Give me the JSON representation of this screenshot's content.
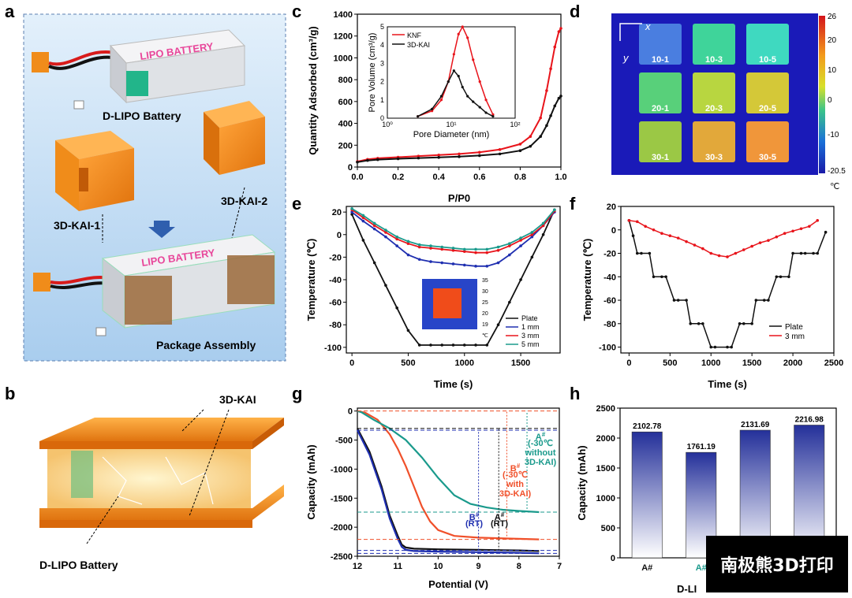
{
  "panels": {
    "a": {
      "letter": "a",
      "label_battery": "D-LIPO Battery",
      "label_k1": "3D-KAI-1",
      "label_k2": "3D-KAI-2",
      "label_pkg": "Package Assembly",
      "battery_print": "LIPO BATTERY",
      "battery_print2": "LIPO BATTERY"
    },
    "b": {
      "letter": "b",
      "label_kai": "3D-KAI",
      "label_battery": "D-LIPO Battery"
    },
    "c": {
      "letter": "c"
    },
    "d": {
      "letter": "d",
      "x_axis": "x",
      "y_axis": "y",
      "samples": [
        "10-1",
        "10-3",
        "10-5",
        "20-1",
        "20-3",
        "20-5",
        "30-1",
        "30-3",
        "30-5"
      ],
      "colorbar_ticks": [
        "26",
        "20",
        "10",
        "0",
        "-10",
        "-20.5"
      ],
      "unit": "℃"
    },
    "e": {
      "letter": "e",
      "inset_ticks": [
        "35",
        "30",
        "25",
        "20",
        "19"
      ],
      "inset_unit": "℃"
    },
    "f": {
      "letter": "f"
    },
    "g": {
      "letter": "g",
      "annotations": {
        "a_cold": [
          "A",
          "(-30℃",
          "without",
          "3D-KAI)"
        ],
        "b_cold": [
          "B",
          "(-30℃",
          "with",
          "3D-KAI)"
        ],
        "b_rt": [
          "B",
          "(RT)"
        ],
        "a_rt": [
          "A",
          "(RT)"
        ]
      },
      "sup": "#"
    },
    "h": {
      "letter": "h",
      "xlabel": "D-LI"
    }
  },
  "chart_data": [
    {
      "id": "c",
      "type": "line",
      "xlabel": "P/P0",
      "ylabel": "Quantity Adsorbed (cm³/g)",
      "xlim": [
        0,
        1.0
      ],
      "ylim": [
        0,
        1400
      ],
      "xticks": [
        "0.0",
        "0.2",
        "0.4",
        "0.6",
        "0.8",
        "1.0"
      ],
      "yticks": [
        "0",
        "200",
        "400",
        "600",
        "800",
        "1000",
        "1200",
        "1400"
      ],
      "series": [
        {
          "name": "KNF",
          "color": "#e8141b",
          "x": [
            0,
            0.05,
            0.1,
            0.2,
            0.3,
            0.4,
            0.5,
            0.6,
            0.7,
            0.8,
            0.85,
            0.9,
            0.93,
            0.95,
            0.97,
            0.99,
            1.0
          ],
          "y": [
            50,
            70,
            80,
            90,
            100,
            110,
            120,
            135,
            160,
            210,
            280,
            450,
            700,
            900,
            1100,
            1240,
            1270
          ]
        },
        {
          "name": "3D-KAI",
          "color": "#111111",
          "x": [
            0,
            0.05,
            0.1,
            0.2,
            0.3,
            0.4,
            0.5,
            0.6,
            0.7,
            0.8,
            0.85,
            0.9,
            0.93,
            0.95,
            0.97,
            0.99,
            1.0
          ],
          "y": [
            45,
            60,
            68,
            76,
            82,
            88,
            95,
            105,
            120,
            150,
            190,
            280,
            380,
            470,
            560,
            630,
            650
          ]
        }
      ],
      "inset": {
        "xlabel": "Pore Diameter (nm)",
        "ylabel": "Pore Volume (cm³/g)",
        "xticks": [
          "10⁰",
          "10¹",
          "10²"
        ],
        "yticks": [
          "0",
          "1",
          "2",
          "3",
          "4",
          "5"
        ],
        "series": [
          {
            "name": "KNF",
            "color": "#e8141b",
            "x": [
              3,
              5,
              7,
              9,
              11,
              13,
              15,
              18,
              22,
              28,
              35,
              45
            ],
            "y": [
              0.1,
              0.4,
              1.0,
              2.0,
              3.5,
              4.6,
              5.0,
              4.4,
              3.2,
              2.0,
              1.0,
              0.2
            ]
          },
          {
            "name": "3D-KAI",
            "color": "#111111",
            "x": [
              3,
              5,
              7,
              9,
              11,
              13,
              15,
              18,
              22,
              28,
              35,
              45
            ],
            "y": [
              0.1,
              0.5,
              1.2,
              2.0,
              2.6,
              2.3,
              1.7,
              1.2,
              0.9,
              0.6,
              0.3,
              0.1
            ]
          }
        ]
      }
    },
    {
      "id": "e",
      "type": "line",
      "xlabel": "Time (s)",
      "ylabel": "Temperature (℃)",
      "xlim": [
        -50,
        1850
      ],
      "ylim": [
        -105,
        25
      ],
      "xticks": [
        "0",
        "500",
        "1000",
        "1500"
      ],
      "yticks": [
        "20",
        "0",
        "-20",
        "-40",
        "-60",
        "-80",
        "-100"
      ],
      "series": [
        {
          "name": "Plate",
          "color": "#111111",
          "x": [
            0,
            100,
            200,
            300,
            400,
            500,
            600,
            700,
            800,
            900,
            1000,
            1100,
            1200,
            1300,
            1400,
            1500,
            1600,
            1700,
            1800
          ],
          "y": [
            18,
            -5,
            -25,
            -45,
            -65,
            -85,
            -98,
            -98,
            -98,
            -98,
            -98,
            -98,
            -98,
            -80,
            -60,
            -40,
            -20,
            0,
            22
          ]
        },
        {
          "name": "1 mm",
          "color": "#1f2fb0",
          "x": [
            0,
            100,
            200,
            300,
            400,
            500,
            600,
            700,
            800,
            900,
            1000,
            1100,
            1200,
            1300,
            1400,
            1500,
            1600,
            1700,
            1800
          ],
          "y": [
            20,
            12,
            5,
            -2,
            -10,
            -18,
            -22,
            -24,
            -25,
            -26,
            -27,
            -28,
            -28,
            -25,
            -18,
            -10,
            -2,
            8,
            20
          ]
        },
        {
          "name": "3 mm",
          "color": "#e8141b",
          "x": [
            0,
            100,
            200,
            300,
            400,
            500,
            600,
            700,
            800,
            900,
            1000,
            1100,
            1200,
            1300,
            1400,
            1500,
            1600,
            1700,
            1800
          ],
          "y": [
            22,
            15,
            8,
            2,
            -4,
            -8,
            -11,
            -12,
            -13,
            -14,
            -15,
            -16,
            -16,
            -14,
            -10,
            -5,
            0,
            8,
            21
          ]
        },
        {
          "name": "5 mm",
          "color": "#1a9a8c",
          "x": [
            0,
            100,
            200,
            300,
            400,
            500,
            600,
            700,
            800,
            900,
            1000,
            1100,
            1200,
            1300,
            1400,
            1500,
            1600,
            1700,
            1800
          ],
          "y": [
            23,
            17,
            10,
            4,
            -2,
            -6,
            -9,
            -10,
            -11,
            -12,
            -13,
            -13,
            -13,
            -11,
            -8,
            -3,
            2,
            10,
            22
          ]
        }
      ]
    },
    {
      "id": "f",
      "type": "line",
      "xlabel": "Time (s)",
      "ylabel": "Temperature (℃)",
      "xlim": [
        -100,
        2500
      ],
      "ylim": [
        -105,
        20
      ],
      "xticks": [
        "0",
        "500",
        "1000",
        "1500",
        "2000",
        "2500"
      ],
      "yticks": [
        "20",
        "0",
        "-20",
        "-40",
        "-60",
        "-80",
        "-100"
      ],
      "series": [
        {
          "name": "Plate",
          "color": "#111111",
          "x": [
            0,
            50,
            100,
            150,
            250,
            300,
            400,
            450,
            550,
            600,
            700,
            750,
            850,
            900,
            1000,
            1050,
            1200,
            1250,
            1350,
            1400,
            1500,
            1550,
            1650,
            1700,
            1800,
            1850,
            1950,
            2000,
            2100,
            2150,
            2250,
            2300,
            2400
          ],
          "y": [
            8,
            -5,
            -20,
            -20,
            -20,
            -40,
            -40,
            -40,
            -60,
            -60,
            -60,
            -80,
            -80,
            -80,
            -100,
            -100,
            -100,
            -100,
            -80,
            -80,
            -80,
            -60,
            -60,
            -60,
            -40,
            -40,
            -40,
            -20,
            -20,
            -20,
            -20,
            -20,
            -2
          ]
        },
        {
          "name": "3 mm",
          "color": "#e8141b",
          "x": [
            0,
            100,
            200,
            300,
            400,
            500,
            600,
            700,
            800,
            900,
            1000,
            1100,
            1200,
            1300,
            1400,
            1500,
            1600,
            1700,
            1800,
            1900,
            2000,
            2100,
            2200,
            2300
          ],
          "y": [
            8,
            7,
            3,
            0,
            -3,
            -5,
            -7,
            -10,
            -13,
            -16,
            -20,
            -22,
            -23,
            -20,
            -17,
            -14,
            -11,
            -9,
            -6,
            -3,
            -1,
            1,
            3,
            8
          ]
        }
      ]
    },
    {
      "id": "g",
      "type": "line",
      "xlabel": "Potential (V)",
      "ylabel": "Capacity (mAh)",
      "xlim": [
        12,
        7
      ],
      "ylim": [
        -2500,
        50
      ],
      "xticks": [
        "12",
        "11",
        "10",
        "9",
        "8",
        "7"
      ],
      "yticks": [
        "0",
        "-500",
        "-1000",
        "-1500",
        "-2000",
        "-2500"
      ],
      "series": [
        {
          "name": "A# RT",
          "color": "#111111",
          "x": [
            12,
            11.7,
            11.4,
            11.2,
            11.0,
            10.9,
            10.8,
            10.6,
            10.0,
            9.0,
            8.0,
            7.5
          ],
          "y": [
            -300,
            -700,
            -1300,
            -1800,
            -2150,
            -2300,
            -2350,
            -2370,
            -2380,
            -2390,
            -2400,
            -2410
          ]
        },
        {
          "name": "B# RT",
          "color": "#1f2fb0",
          "x": [
            12,
            11.7,
            11.4,
            11.2,
            11.0,
            10.9,
            10.8,
            10.6,
            10.0,
            9.0,
            8.0,
            7.5
          ],
          "y": [
            -330,
            -750,
            -1350,
            -1850,
            -2200,
            -2340,
            -2390,
            -2410,
            -2420,
            -2430,
            -2440,
            -2450
          ]
        },
        {
          "name": "B# -30 with",
          "color": "#f0502a",
          "x": [
            12,
            11.8,
            11.5,
            11.2,
            11.0,
            10.8,
            10.6,
            10.4,
            10.2,
            10.0,
            9.6,
            9.0,
            8.0,
            7.5
          ],
          "y": [
            0,
            -30,
            -150,
            -400,
            -650,
            -950,
            -1300,
            -1650,
            -1900,
            -2050,
            -2150,
            -2180,
            -2200,
            -2210
          ]
        },
        {
          "name": "A# -30 without",
          "color": "#1a9a8c",
          "x": [
            12,
            11.9,
            11.6,
            11.2,
            10.8,
            10.4,
            10.0,
            9.6,
            9.2,
            8.8,
            8.4,
            8.0,
            7.5
          ],
          "y": [
            0,
            -20,
            -150,
            -300,
            -500,
            -800,
            -1150,
            -1450,
            -1600,
            -1660,
            -1700,
            -1720,
            -1740
          ]
        }
      ]
    },
    {
      "id": "h",
      "type": "bar",
      "ylabel": "Capacity (mAh)",
      "ylim": [
        0,
        2500
      ],
      "yticks": [
        "0",
        "500",
        "1000",
        "1500",
        "2000",
        "2500"
      ],
      "categories": [
        "A#",
        "A#",
        "",
        ""
      ],
      "values": [
        2102.78,
        1761.19,
        2131.69,
        2216.98
      ],
      "labels": [
        "2102.78",
        "1761.19",
        "2131.69",
        "2216.98"
      ],
      "bar_color": "#24309a",
      "cat_colors": [
        "#111111",
        "#1a9a8c",
        "#111111",
        "#111111"
      ]
    }
  ],
  "watermark": "南极熊3D打印"
}
